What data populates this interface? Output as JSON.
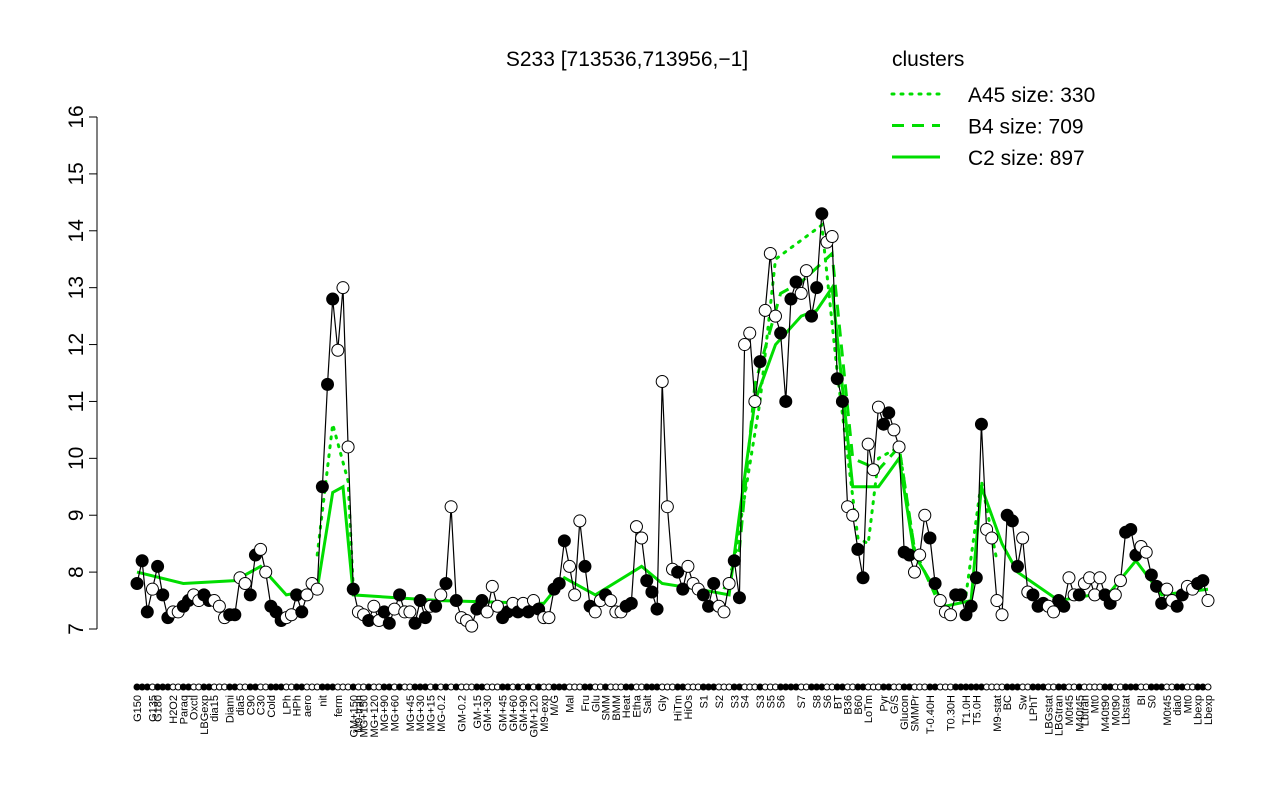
{
  "chart_data": {
    "type": "line",
    "title": "S233 [713536,713956,−1]",
    "legend_title": "clusters",
    "legend_color": "#00dd00",
    "legend_position": "top-right",
    "ylim": [
      7,
      16
    ],
    "yticks": [
      7,
      8,
      9,
      10,
      11,
      12,
      13,
      14,
      15,
      16
    ],
    "categories": [
      "G150",
      null,
      null,
      "G135",
      "G180",
      null,
      null,
      "H2O2",
      null,
      "Paraq",
      null,
      "Oxctl",
      null,
      "LBGexp",
      null,
      "dia15",
      null,
      null,
      "Diami",
      null,
      "dia5",
      null,
      "C90",
      null,
      "C30",
      null,
      "Cold",
      null,
      null,
      "LPh",
      null,
      "HPh",
      null,
      "aero",
      null,
      null,
      "nit",
      null,
      null,
      "ferm",
      null,
      null,
      "GM+150",
      "M9-tran",
      "MG+150",
      null,
      "MG+120",
      null,
      "MG+90",
      null,
      "MG+60",
      null,
      null,
      "MG+45",
      null,
      "MG+30",
      null,
      "MG+15",
      null,
      "MG-0.2",
      null,
      null,
      null,
      "GM-0.2",
      null,
      null,
      "GM-15",
      null,
      "GM+30",
      null,
      null,
      "GM+45",
      null,
      "GM+60",
      null,
      "GM+90",
      null,
      "GM+120",
      null,
      "M9-exp",
      null,
      "M/G",
      null,
      null,
      "Mal",
      null,
      null,
      "Fru",
      null,
      "Glu",
      null,
      "SMM",
      null,
      "BMM",
      null,
      "Heat",
      null,
      "Etha",
      null,
      "Salt",
      null,
      null,
      "Gly",
      null,
      null,
      "HiTm",
      null,
      "HiOs",
      null,
      null,
      "S1",
      null,
      null,
      "S2",
      null,
      null,
      "S3",
      null,
      "S4",
      null,
      null,
      "S3",
      null,
      "S5",
      null,
      "S6",
      null,
      null,
      null,
      "S7",
      null,
      null,
      "S8",
      null,
      "S6",
      null,
      "BT",
      null,
      "B36",
      null,
      "B60",
      null,
      "LoTm",
      null,
      null,
      "Pyr",
      null,
      "G/S",
      null,
      "Glucon",
      null,
      "SMMPr",
      null,
      null,
      "T-0.40H",
      null,
      null,
      null,
      "T0.30H",
      null,
      null,
      "T1.0H",
      null,
      "T5.0H",
      null,
      null,
      null,
      "M9-stat",
      null,
      "BC",
      null,
      null,
      "Sw",
      null,
      "LPhT",
      null,
      null,
      "LBGstat",
      null,
      "LBGtran",
      null,
      "M0t45",
      null,
      "M40t45",
      "Lbtran",
      null,
      "Mt0",
      null,
      "M40t90",
      null,
      "M0t90",
      null,
      "Lbstat",
      null,
      null,
      "BI",
      null,
      "S0",
      null,
      null,
      "M0t45",
      null,
      "dia0",
      null,
      "Mt0",
      null,
      "Lbexp",
      null,
      "Lbexp"
    ],
    "values": [
      7.8,
      8.2,
      7.3,
      7.7,
      8.1,
      7.6,
      7.2,
      7.3,
      7.3,
      7.4,
      7.5,
      7.6,
      7.5,
      7.6,
      7.5,
      7.5,
      7.4,
      7.2,
      7.25,
      7.25,
      7.9,
      7.8,
      7.6,
      8.3,
      8.4,
      8.0,
      7.4,
      7.3,
      7.15,
      7.2,
      7.25,
      7.6,
      7.3,
      7.6,
      7.8,
      7.7,
      9.5,
      11.3,
      12.8,
      11.9,
      13.0,
      10.2,
      7.7,
      7.3,
      7.25,
      7.15,
      7.4,
      7.15,
      7.3,
      7.1,
      7.35,
      7.6,
      7.3,
      7.3,
      7.1,
      7.5,
      7.2,
      7.4,
      7.4,
      7.6,
      7.8,
      9.15,
      7.5,
      7.2,
      7.15,
      7.05,
      7.35,
      7.5,
      7.3,
      7.75,
      7.4,
      7.2,
      7.3,
      7.45,
      7.3,
      7.45,
      7.3,
      7.5,
      7.35,
      7.2,
      7.2,
      7.7,
      7.8,
      8.55,
      8.1,
      7.6,
      8.9,
      8.1,
      7.4,
      7.3,
      7.5,
      7.6,
      7.5,
      7.3,
      7.3,
      7.4,
      7.45,
      8.8,
      8.6,
      7.85,
      7.65,
      7.35,
      11.35,
      9.15,
      8.05,
      8.0,
      7.7,
      8.1,
      7.8,
      7.7,
      7.6,
      7.4,
      7.8,
      7.4,
      7.3,
      7.8,
      8.2,
      7.55,
      12.0,
      12.2,
      11.0,
      11.7,
      12.6,
      13.6,
      12.5,
      12.2,
      11.0,
      12.8,
      13.1,
      12.9,
      13.3,
      12.5,
      13.0,
      14.3,
      13.8,
      13.9,
      11.4,
      11.0,
      9.15,
      9.0,
      8.4,
      7.9,
      10.25,
      9.8,
      10.9,
      10.6,
      10.8,
      10.5,
      10.2,
      8.35,
      8.3,
      8.0,
      8.3,
      9.0,
      8.6,
      7.8,
      7.5,
      7.3,
      7.25,
      7.6,
      7.6,
      7.25,
      7.4,
      7.9,
      10.6,
      8.75,
      8.6,
      7.5,
      7.25,
      9.0,
      8.9,
      8.1,
      8.6,
      7.65,
      7.6,
      7.4,
      7.45,
      7.4,
      7.3,
      7.5,
      7.4,
      7.9,
      7.6,
      7.6,
      7.8,
      7.9,
      7.6,
      7.9,
      7.6,
      7.45,
      7.6,
      7.85,
      8.7,
      8.75,
      8.3,
      8.45,
      8.35,
      7.95,
      7.75,
      7.45,
      7.7,
      7.5,
      7.4,
      7.6,
      7.75,
      7.7,
      7.8,
      7.85,
      7.5
    ],
    "marker_fills": [
      "#000",
      "#000",
      "#000",
      "#fff",
      "#000",
      "#000",
      "#000",
      "#fff",
      "#fff",
      "#000",
      "#000",
      "#fff",
      "#fff",
      "#000",
      "#000",
      "#fff",
      "#fff",
      "#fff",
      "#000",
      "#000",
      "#fff",
      "#fff",
      "#000",
      "#000",
      "#fff",
      "#fff",
      "#000",
      "#000",
      "#000",
      "#fff",
      "#fff",
      "#000",
      "#000",
      "#fff",
      "#fff",
      "#fff",
      "#000",
      "#000",
      "#000",
      "#fff",
      "#fff",
      "#fff",
      "#000",
      "#fff",
      "#fff",
      "#000",
      "#fff",
      "#fff",
      "#000",
      "#000",
      "#fff",
      "#000",
      "#fff",
      "#fff",
      "#000",
      "#000",
      "#000",
      "#fff",
      "#000",
      "#fff",
      "#000",
      "#fff",
      "#000",
      "#fff",
      "#fff",
      "#fff",
      "#000",
      "#000",
      "#fff",
      "#fff",
      "#fff",
      "#000",
      "#000",
      "#fff",
      "#000",
      "#fff",
      "#000",
      "#fff",
      "#000",
      "#fff",
      "#fff",
      "#000",
      "#000",
      "#000",
      "#fff",
      "#fff",
      "#fff",
      "#000",
      "#000",
      "#fff",
      "#fff",
      "#000",
      "#fff",
      "#fff",
      "#fff",
      "#000",
      "#000",
      "#fff",
      "#fff",
      "#000",
      "#000",
      "#000",
      "#fff",
      "#fff",
      "#fff",
      "#000",
      "#000",
      "#fff",
      "#fff",
      "#fff",
      "#000",
      "#000",
      "#000",
      "#fff",
      "#fff",
      "#fff",
      "#000",
      "#000",
      "#fff",
      "#fff",
      "#fff",
      "#000",
      "#fff",
      "#fff",
      "#fff",
      "#000",
      "#000",
      "#000",
      "#000",
      "#fff",
      "#fff",
      "#000",
      "#000",
      "#000",
      "#fff",
      "#fff",
      "#000",
      "#000",
      "#fff",
      "#fff",
      "#000",
      "#000",
      "#fff",
      "#fff",
      "#fff",
      "#000",
      "#000",
      "#fff",
      "#fff",
      "#000",
      "#000",
      "#fff",
      "#fff",
      "#fff",
      "#000",
      "#000",
      "#fff",
      "#fff",
      "#fff",
      "#000",
      "#000",
      "#000",
      "#000",
      "#000",
      "#000",
      "#fff",
      "#fff",
      "#fff",
      "#fff",
      "#000",
      "#000",
      "#000",
      "#fff",
      "#fff",
      "#000",
      "#000",
      "#000",
      "#fff",
      "#fff",
      "#000",
      "#000",
      "#fff",
      "#fff",
      "#000",
      "#fff",
      "#fff",
      "#fff",
      "#fff",
      "#000",
      "#000",
      "#fff",
      "#fff",
      "#000",
      "#000",
      "#000",
      "#fff",
      "#fff",
      "#000",
      "#000",
      "#000",
      "#fff",
      "#fff",
      "#000",
      "#000",
      "#fff",
      "#fff",
      "#000",
      "#000",
      "#fff"
    ],
    "line_color": "#000000",
    "clusters": [
      {
        "name": "A45 size: 330",
        "color": "#00dd00",
        "dash": "dotted",
        "x": [
          36,
          39,
          42,
          43,
          null,
          117,
          122,
          125,
          134,
          137,
          141,
          143,
          145,
          149,
          152,
          null,
          162,
          165,
          168
        ],
        "values": [
          8.3,
          10.6,
          9.6,
          7.7,
          null,
          8.2,
          11.0,
          13.5,
          14.1,
          11.5,
          8.6,
          8.5,
          10.0,
          10.2,
          8.4,
          null,
          7.6,
          9.6,
          8.2
        ]
      },
      {
        "name": "B4 size: 709",
        "color": "#00dd00",
        "dash": "dashed",
        "x": [
          115,
          118,
          121,
          126,
          130,
          136,
          140,
          145,
          149,
          152,
          156
        ],
        "values": [
          7.7,
          8.4,
          11.3,
          12.9,
          13.1,
          13.6,
          10.0,
          9.8,
          10.2,
          8.4,
          7.6
        ]
      },
      {
        "name": "C2 size: 897",
        "color": "#00dd00",
        "dash": "solid",
        "x": [
          1,
          10,
          20,
          25,
          30,
          36,
          39,
          41,
          43,
          60,
          80,
          84,
          90,
          99,
          103,
          110,
          116,
          118,
          121,
          125,
          130,
          133,
          136,
          140,
          145,
          149,
          152,
          158,
          163,
          165,
          169,
          172,
          180,
          190,
          195,
          200,
          209
        ],
        "values": [
          8.0,
          7.8,
          7.85,
          8.1,
          7.6,
          7.7,
          9.4,
          9.5,
          7.6,
          7.5,
          7.45,
          7.9,
          7.6,
          8.1,
          7.8,
          7.7,
          7.6,
          9.0,
          11.0,
          12.0,
          12.5,
          12.6,
          13.0,
          9.5,
          9.5,
          10.0,
          8.3,
          7.4,
          7.5,
          9.5,
          8.5,
          8.0,
          7.5,
          7.65,
          8.2,
          7.6,
          7.7
        ]
      }
    ]
  }
}
